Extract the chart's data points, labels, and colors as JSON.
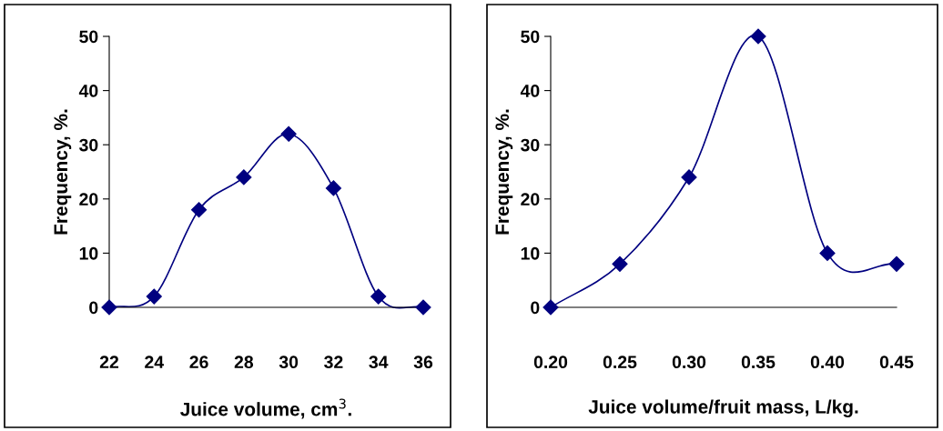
{
  "chart_data": [
    {
      "type": "line",
      "xlabel": "Juice volume, cm$^{3}$.",
      "ylabel": "Frequency, %.",
      "x": [
        22,
        24,
        26,
        28,
        30,
        32,
        34,
        36
      ],
      "series": [
        {
          "color": "#000080",
          "values": [
            0,
            2,
            18,
            24,
            32,
            22,
            2,
            0
          ]
        }
      ],
      "xlim": [
        22,
        36
      ],
      "xticks": [
        22,
        24,
        26,
        28,
        30,
        32,
        34,
        36
      ],
      "ylim": [
        0,
        50
      ],
      "yticks": [
        0,
        10,
        20,
        30,
        40,
        50
      ],
      "marker": "diamond",
      "line_style": "solid",
      "grid": false,
      "legend": false
    },
    {
      "type": "line",
      "xlabel": "Juice volume/fruit mass, L/kg.",
      "ylabel": "Frequency, %.",
      "x": [
        0.2,
        0.25,
        0.3,
        0.35,
        0.4,
        0.45
      ],
      "series": [
        {
          "color": "#000080",
          "values": [
            0,
            8,
            24,
            50,
            10,
            8
          ]
        }
      ],
      "xlim": [
        0.2,
        0.45
      ],
      "xticks": [
        {
          "value": 0.2,
          "label": "0.20"
        },
        {
          "value": 0.25,
          "label": "0.25"
        },
        {
          "value": 0.3,
          "label": "0.30"
        },
        {
          "value": 0.35,
          "label": "0.35"
        },
        {
          "value": 0.4,
          "label": "0.40"
        },
        {
          "value": 0.45,
          "label": "0.45"
        }
      ],
      "ylim": [
        0,
        50
      ],
      "yticks": [
        0,
        10,
        20,
        30,
        40,
        50
      ],
      "marker": "diamond",
      "line_style": "solid",
      "grid": false,
      "legend": false
    }
  ]
}
